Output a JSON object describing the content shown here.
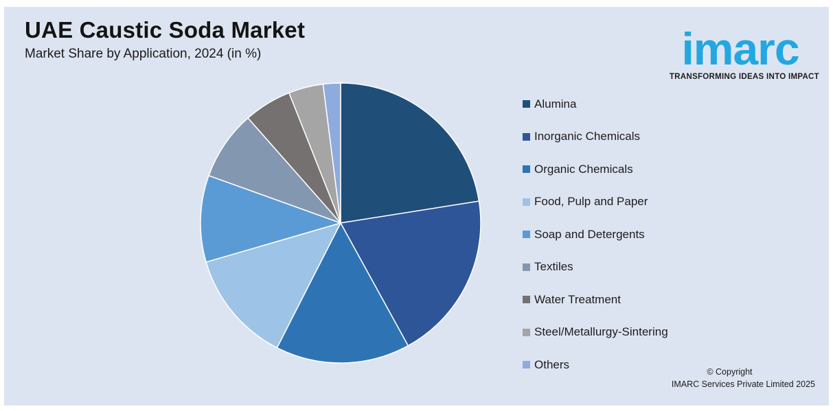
{
  "header": {
    "title": "UAE Caustic Soda Market",
    "subtitle": "Market Share by Application, 2024 (in %)"
  },
  "logo": {
    "wordmark": "imarc",
    "tagline": "TRANSFORMING IDEAS INTO IMPACT",
    "color": "#23a7e0"
  },
  "chart_data": {
    "type": "pie",
    "title": "UAE Caustic Soda Market",
    "subtitle": "Market Share by Application, 2024 (in %)",
    "legend_position": "right",
    "start_angle_deg": 0,
    "direction": "clockwise",
    "slices": [
      {
        "label": "Alumina",
        "value": 22.5,
        "color": "#1f4e79"
      },
      {
        "label": "Inorganic Chemicals",
        "value": 19.5,
        "color": "#2e5597"
      },
      {
        "label": "Organic Chemicals",
        "value": 15.5,
        "color": "#2e74b5"
      },
      {
        "label": "Food, Pulp and Paper",
        "value": 13.0,
        "color": "#9dc3e6"
      },
      {
        "label": "Soap and Detergents",
        "value": 10.0,
        "color": "#5b9bd5"
      },
      {
        "label": "Textiles",
        "value": 8.0,
        "color": "#8497b0"
      },
      {
        "label": "Water Treatment",
        "value": 5.5,
        "color": "#767171"
      },
      {
        "label": "Steel/Metallurgy-Sintering",
        "value": 4.0,
        "color": "#a5a5a5"
      },
      {
        "label": "Others",
        "value": 2.0,
        "color": "#8faadc"
      }
    ]
  },
  "footer": {
    "copyright_line1": "© Copyright",
    "copyright_line2": "IMARC Services Private Limited 2025"
  }
}
